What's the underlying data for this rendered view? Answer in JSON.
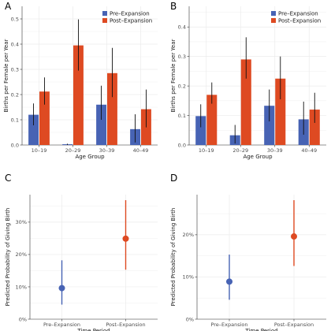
{
  "colors": {
    "pre": "#4763B4",
    "post": "#DE4A22",
    "grid": "#EBEBEB",
    "axis": "#333333"
  },
  "chart_data": [
    {
      "panel_label": "A",
      "type": "bar",
      "xlabel": "Age Group",
      "ylabel": "Births per Female per Year",
      "categories": [
        "10–19",
        "20–29",
        "30–39",
        "40–49"
      ],
      "ylim": [
        0,
        0.55
      ],
      "yticks": [
        "0.0",
        "0.1",
        "0.2",
        "0.3",
        "0.4",
        "0.5"
      ],
      "legend_position": "top-right",
      "series": [
        {
          "name": "Pre–Expansion",
          "values": [
            0.12,
            0.003,
            0.16,
            0.063
          ],
          "err_low": [
            0.078,
            0,
            0.1,
            0.01
          ],
          "err_high": [
            0.165,
            0.005,
            0.235,
            0.122
          ]
        },
        {
          "name": "Post–Expansion",
          "values": [
            0.212,
            0.395,
            0.285,
            0.142
          ],
          "err_low": [
            0.16,
            0.295,
            0.19,
            0.07
          ],
          "err_high": [
            0.268,
            0.498,
            0.385,
            0.22
          ]
        }
      ]
    },
    {
      "panel_label": "B",
      "type": "bar",
      "xlabel": "Age Group",
      "ylabel": "Births per Female per Year",
      "categories": [
        "10–19",
        "20–29",
        "30–39",
        "40–49"
      ],
      "ylim": [
        0,
        0.47
      ],
      "yticks": [
        "0.0",
        "0.1",
        "0.2",
        "0.3",
        "0.4"
      ],
      "legend_position": "top-right",
      "series": [
        {
          "name": "Pre–Expansion",
          "values": [
            0.098,
            0.033,
            0.133,
            0.087
          ],
          "err_low": [
            0.06,
            0.005,
            0.08,
            0.035
          ],
          "err_high": [
            0.138,
            0.068,
            0.188,
            0.147
          ]
        },
        {
          "name": "Post–Expansion",
          "values": [
            0.17,
            0.29,
            0.225,
            0.12
          ],
          "err_low": [
            0.14,
            0.225,
            0.155,
            0.075
          ],
          "err_high": [
            0.212,
            0.365,
            0.3,
            0.177
          ]
        }
      ]
    },
    {
      "panel_label": "C",
      "type": "scatter",
      "xlabel": "Time Period",
      "ylabel": "Predicted Probability of Giving Birth",
      "categories": [
        "Pre–Expansion",
        "Post–Expansion"
      ],
      "ylim": [
        0,
        0.385
      ],
      "yticks": [
        "0%",
        "10%",
        "20%",
        "30%"
      ],
      "points": [
        {
          "name": "Pre–Expansion",
          "value": 0.096,
          "err_low": 0.045,
          "err_high": 0.182
        },
        {
          "name": "Post–Expansion",
          "value": 0.249,
          "err_low": 0.153,
          "err_high": 0.368
        }
      ]
    },
    {
      "panel_label": "D",
      "type": "scatter",
      "xlabel": "Time Period",
      "ylabel": "Predicted Probability of Giving Birth",
      "categories": [
        "Pre–Expansion",
        "Post–Expansion"
      ],
      "ylim": [
        0,
        0.295
      ],
      "yticks": [
        "0%",
        "10%",
        "20%"
      ],
      "points": [
        {
          "name": "Pre–Expansion",
          "value": 0.089,
          "err_low": 0.046,
          "err_high": 0.153
        },
        {
          "name": "Post–Expansion",
          "value": 0.196,
          "err_low": 0.126,
          "err_high": 0.282
        }
      ]
    }
  ]
}
